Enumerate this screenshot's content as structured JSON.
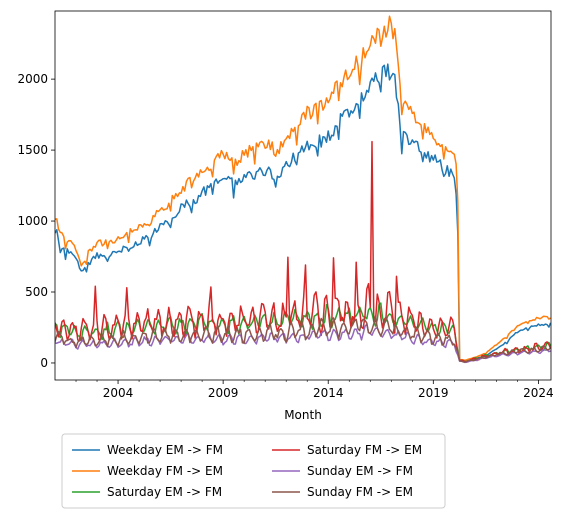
{
  "chart_data": {
    "type": "line",
    "title": "",
    "xlabel": "Month",
    "ylabel": "",
    "xlim": [
      2001.0,
      2024.6
    ],
    "ylim": [
      -120,
      2480
    ],
    "xticks": [
      {
        "value": 2004,
        "label": "2004"
      },
      {
        "value": 2009,
        "label": "2009"
      },
      {
        "value": 2014,
        "label": "2014"
      },
      {
        "value": 2019,
        "label": "2019"
      },
      {
        "value": 2024,
        "label": "2024"
      }
    ],
    "yticks": [
      {
        "value": 0,
        "label": "0"
      },
      {
        "value": 500,
        "label": "500"
      },
      {
        "value": 1000,
        "label": "1000"
      },
      {
        "value": 1500,
        "label": "1500"
      },
      {
        "value": 2000,
        "label": "2000"
      }
    ],
    "grid": false,
    "legend_position": "below the plot, two columns",
    "series": [
      {
        "name": "Weekday EM -> FM",
        "color": "#1f77b4",
        "x": [
          2001.0,
          2001.25,
          2001.6,
          2002.0,
          2002.3,
          2002.6,
          2003.0,
          2003.6,
          2004.0,
          2004.6,
          2005.0,
          2005.6,
          2006.0,
          2006.6,
          2007.0,
          2007.6,
          2008.0,
          2008.6,
          2009.0,
          2009.6,
          2010.0,
          2010.6,
          2011.0,
          2011.6,
          2012.0,
          2012.6,
          2013.0,
          2013.6,
          2014.0,
          2014.6,
          2015.0,
          2015.6,
          2016.0,
          2016.3,
          2016.6,
          2017.0,
          2017.2,
          2017.5,
          2018.0,
          2018.5,
          2019.0,
          2019.5,
          2019.9,
          2020.05,
          2020.15,
          2020.25,
          2020.5,
          2021.0,
          2021.5,
          2022.0,
          2022.5,
          2023.0,
          2023.5,
          2024.0,
          2024.6
        ],
        "y": [
          1000,
          780,
          800,
          720,
          640,
          700,
          760,
          750,
          790,
          820,
          850,
          900,
          960,
          1020,
          1100,
          1140,
          1200,
          1260,
          1300,
          1260,
          1330,
          1340,
          1360,
          1320,
          1380,
          1500,
          1520,
          1560,
          1600,
          1720,
          1780,
          1870,
          1950,
          2020,
          2040,
          2060,
          1980,
          1600,
          1560,
          1500,
          1440,
          1370,
          1320,
          1250,
          1100,
          20,
          15,
          30,
          50,
          100,
          150,
          220,
          250,
          270,
          275
        ]
      },
      {
        "name": "Weekday FM -> EM",
        "color": "#ff7f0e",
        "x": [
          2001.0,
          2001.25,
          2001.6,
          2002.0,
          2002.3,
          2002.6,
          2003.0,
          2003.6,
          2004.0,
          2004.6,
          2005.0,
          2005.6,
          2006.0,
          2006.6,
          2007.0,
          2007.6,
          2008.0,
          2008.6,
          2009.0,
          2009.6,
          2010.0,
          2010.6,
          2011.0,
          2011.6,
          2012.0,
          2012.6,
          2013.0,
          2013.6,
          2014.0,
          2014.6,
          2015.0,
          2015.6,
          2016.0,
          2016.3,
          2016.6,
          2017.0,
          2017.2,
          2017.5,
          2018.0,
          2018.5,
          2019.0,
          2019.5,
          2019.9,
          2020.05,
          2020.15,
          2020.25,
          2020.5,
          2021.0,
          2021.5,
          2022.0,
          2022.5,
          2023.0,
          2023.5,
          2024.0,
          2024.6
        ],
        "y": [
          1050,
          900,
          870,
          800,
          680,
          780,
          850,
          840,
          890,
          930,
          960,
          1010,
          1080,
          1150,
          1230,
          1290,
          1350,
          1420,
          1470,
          1410,
          1490,
          1510,
          1540,
          1500,
          1560,
          1700,
          1760,
          1810,
          1860,
          1980,
          2050,
          2150,
          2250,
          2330,
          2360,
          2380,
          2300,
          1820,
          1750,
          1700,
          1600,
          1520,
          1470,
          1410,
          1380,
          25,
          20,
          40,
          70,
          130,
          190,
          260,
          290,
          320,
          320
        ]
      },
      {
        "name": "Saturday EM -> FM",
        "color": "#2ca02c",
        "x": [
          2001.0,
          2002.0,
          2003.0,
          2004.0,
          2005.0,
          2006.0,
          2007.0,
          2008.0,
          2009.0,
          2010.0,
          2011.0,
          2012.0,
          2013.0,
          2014.0,
          2015.0,
          2016.0,
          2017.0,
          2018.0,
          2019.0,
          2020.0,
          2020.25,
          2020.5,
          2021.0,
          2022.0,
          2023.0,
          2024.0,
          2024.6
        ],
        "y": [
          250,
          210,
          220,
          240,
          250,
          260,
          270,
          280,
          270,
          280,
          290,
          300,
          310,
          330,
          340,
          350,
          320,
          280,
          250,
          230,
          20,
          10,
          30,
          70,
          90,
          110,
          120
        ],
        "amplitude": [
          70,
          60,
          60,
          70,
          70,
          70,
          80,
          80,
          80,
          80,
          80,
          90,
          90,
          100,
          100,
          110,
          90,
          80,
          70,
          60,
          10,
          5,
          10,
          20,
          20,
          30,
          30
        ]
      },
      {
        "name": "Saturday FM -> EM",
        "color": "#d62728",
        "x": [
          2001.0,
          2002.0,
          2003.0,
          2004.0,
          2005.0,
          2006.0,
          2007.0,
          2008.0,
          2009.0,
          2010.0,
          2011.0,
          2012.0,
          2013.0,
          2014.0,
          2015.0,
          2016.0,
          2017.0,
          2018.0,
          2019.0,
          2020.0,
          2020.25,
          2020.5,
          2021.0,
          2022.0,
          2023.0,
          2024.0,
          2024.6
        ],
        "y": [
          270,
          230,
          250,
          260,
          270,
          280,
          290,
          300,
          290,
          300,
          310,
          330,
          340,
          360,
          370,
          380,
          350,
          300,
          260,
          240,
          20,
          10,
          30,
          70,
          90,
          110,
          120
        ],
        "amplitude": [
          110,
          100,
          110,
          110,
          110,
          120,
          120,
          130,
          120,
          130,
          140,
          160,
          160,
          170,
          180,
          190,
          160,
          130,
          110,
          90,
          10,
          5,
          15,
          25,
          30,
          40,
          40
        ],
        "spikes": [
          {
            "x": 2002.9,
            "y": 540
          },
          {
            "x": 2004.4,
            "y": 530
          },
          {
            "x": 2008.4,
            "y": 535
          },
          {
            "x": 2012.05,
            "y": 745
          },
          {
            "x": 2012.95,
            "y": 690
          },
          {
            "x": 2014.25,
            "y": 740
          },
          {
            "x": 2015.35,
            "y": 710
          },
          {
            "x": 2016.05,
            "y": 1560
          },
          {
            "x": 2017.25,
            "y": 610
          }
        ]
      },
      {
        "name": "Sunday EM -> FM",
        "color": "#9467bd",
        "x": [
          2001.0,
          2002.0,
          2003.0,
          2004.0,
          2005.0,
          2006.0,
          2007.0,
          2008.0,
          2009.0,
          2010.0,
          2011.0,
          2012.0,
          2013.0,
          2014.0,
          2015.0,
          2016.0,
          2017.0,
          2018.0,
          2019.0,
          2020.0,
          2020.25,
          2020.5,
          2021.0,
          2022.0,
          2023.0,
          2024.0,
          2024.6
        ],
        "y": [
          150,
          130,
          135,
          145,
          150,
          160,
          165,
          170,
          165,
          170,
          175,
          180,
          190,
          200,
          210,
          220,
          200,
          170,
          150,
          140,
          10,
          5,
          20,
          50,
          70,
          80,
          90
        ],
        "amplitude": [
          40,
          35,
          35,
          40,
          40,
          40,
          45,
          45,
          45,
          45,
          45,
          50,
          50,
          55,
          55,
          60,
          50,
          45,
          40,
          35,
          5,
          3,
          5,
          10,
          15,
          15,
          15
        ]
      },
      {
        "name": "Sunday FM -> EM",
        "color": "#8c564b",
        "x": [
          2001.0,
          2002.0,
          2003.0,
          2004.0,
          2005.0,
          2006.0,
          2007.0,
          2008.0,
          2009.0,
          2010.0,
          2011.0,
          2012.0,
          2013.0,
          2014.0,
          2015.0,
          2016.0,
          2017.0,
          2018.0,
          2019.0,
          2020.0,
          2020.25,
          2020.5,
          2021.0,
          2022.0,
          2023.0,
          2024.0,
          2024.6
        ],
        "y": [
          180,
          150,
          160,
          170,
          180,
          190,
          195,
          200,
          195,
          200,
          210,
          220,
          230,
          250,
          260,
          270,
          240,
          210,
          180,
          160,
          15,
          8,
          25,
          60,
          80,
          95,
          110
        ],
        "amplitude": [
          60,
          50,
          55,
          60,
          60,
          65,
          65,
          70,
          65,
          70,
          70,
          80,
          80,
          90,
          90,
          100,
          80,
          70,
          60,
          50,
          5,
          3,
          8,
          15,
          20,
          20,
          20
        ]
      }
    ]
  }
}
